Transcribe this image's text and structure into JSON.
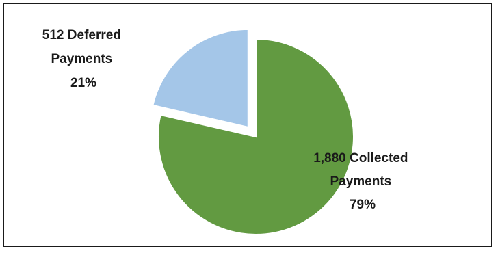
{
  "chart_data": {
    "type": "pie",
    "title": "",
    "slices": [
      {
        "label": "1,880 Collected Payments",
        "label_lines": [
          "1,880 Collected",
          "Payments",
          "79%"
        ],
        "value": 1880,
        "percent": 79,
        "color": "#629a41",
        "exploded": false
      },
      {
        "label": "512 Deferred Payments",
        "label_lines": [
          "512 Deferred",
          "Payments",
          "21%"
        ],
        "value": 512,
        "percent": 21,
        "color": "#a4c6e8",
        "exploded": true
      }
    ],
    "legend": "none",
    "start_angle_deg": 0,
    "direction": "clockwise"
  }
}
